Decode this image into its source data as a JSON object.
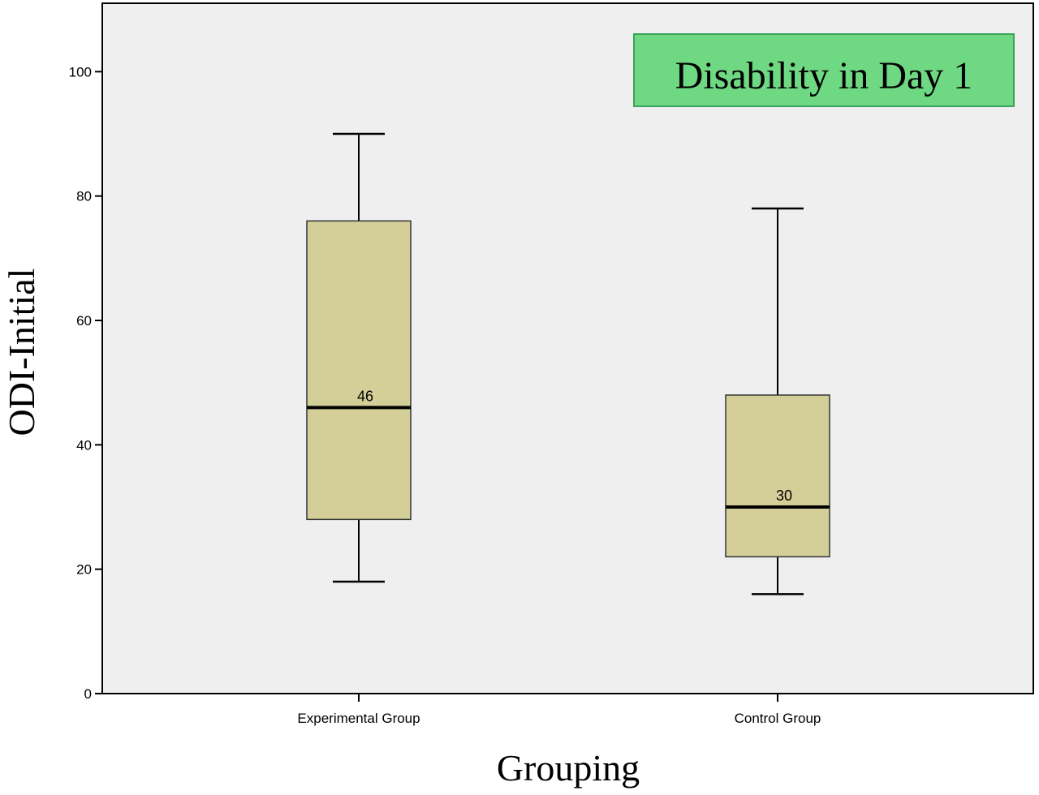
{
  "chart_data": {
    "type": "boxplot",
    "title": "Disability in Day 1",
    "xlabel": "Grouping",
    "ylabel": "ODI-Initial",
    "ylim": [
      0,
      111
    ],
    "yticks": [
      0,
      20,
      40,
      60,
      80,
      100
    ],
    "grid": false,
    "title_placement": "top-right",
    "colors": {
      "plot_background": "#efefef",
      "box_fill": "#d4cf98",
      "title_box_fill": "#6fd883",
      "title_box_border": "#3aa55a"
    },
    "categories": [
      "Experimental Group",
      "Control Group"
    ],
    "boxes": [
      {
        "category": "Experimental Group",
        "min": 18,
        "q1": 28,
        "median": 46,
        "q3": 76,
        "max": 90,
        "median_label": "46"
      },
      {
        "category": "Control Group",
        "min": 16,
        "q1": 22,
        "median": 30,
        "q3": 48,
        "max": 78,
        "median_label": "30"
      }
    ]
  }
}
